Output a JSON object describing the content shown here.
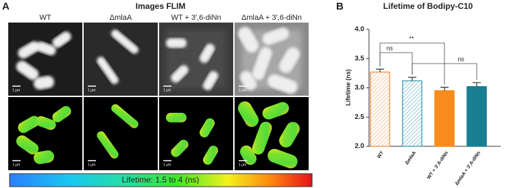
{
  "panel_a": {
    "letter": "A",
    "title": "Images FLIM",
    "columns": [
      "WT",
      "ΔmlaA",
      "WT + 3′,6-diNn",
      "ΔmlaA + 3′,6-diNn"
    ],
    "scale_bar": "1 µm",
    "colorbar_label": "Lifetime: 1.5 to 4 (ns)"
  },
  "chart_data": {
    "type": "bar",
    "letter": "B",
    "title": "Lifetime of Bodipy-C10",
    "y_label": "Lifetime (ns)",
    "categories": [
      "WT",
      "ΔmlaA",
      "WT + 3′,6-diNn",
      "ΔmlaA + 3′,6-diNn"
    ],
    "values": [
      3.27,
      3.12,
      2.95,
      3.02
    ],
    "errors": [
      0.05,
      0.06,
      0.06,
      0.07
    ],
    "colors": [
      "#f2a057",
      "#52a9ba",
      "#f98b1c",
      "#1a7f92"
    ],
    "hatched": [
      true,
      true,
      false,
      false
    ],
    "ylim": [
      2,
      4
    ],
    "yticks": [
      {
        "value": 2,
        "label": "2.0"
      },
      {
        "value": 2.5,
        "label": "2.5"
      },
      {
        "value": 3,
        "label": "3.0"
      },
      {
        "value": 3.5,
        "label": "3.5"
      },
      {
        "value": 4,
        "label": "4.0"
      }
    ],
    "annotations": [
      "ns",
      "**",
      "ns"
    ]
  }
}
